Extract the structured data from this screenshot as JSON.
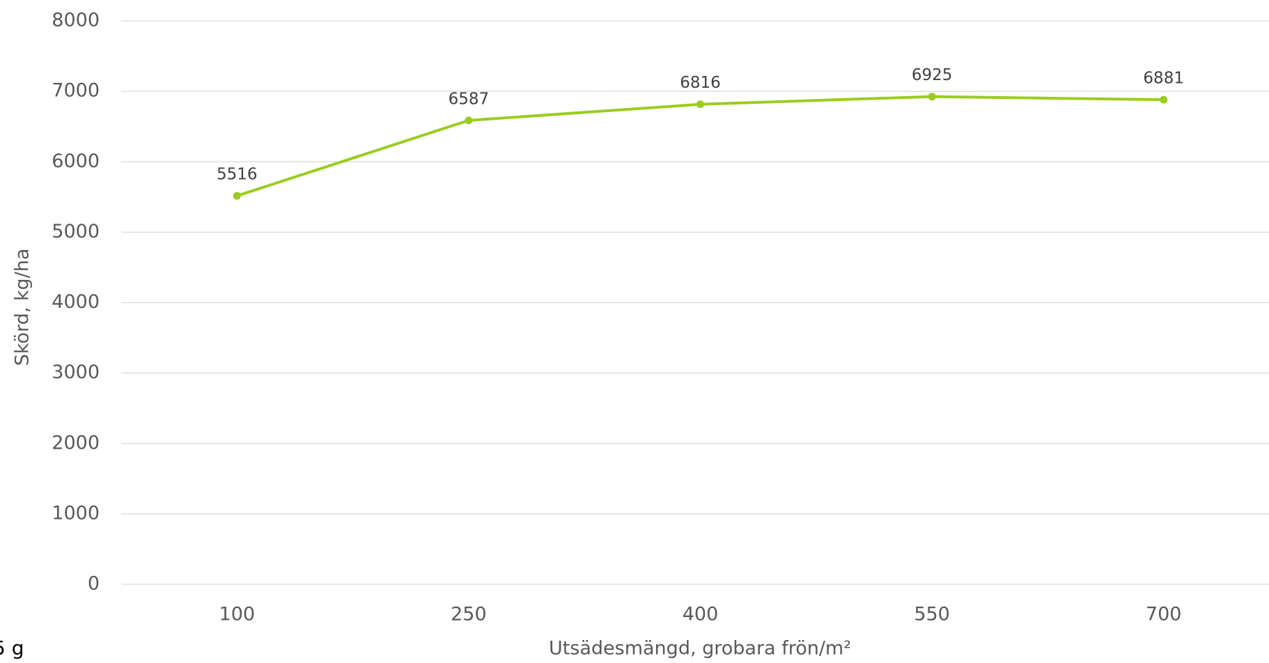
{
  "chart_data": {
    "type": "line",
    "categories": [
      "100",
      "250",
      "400",
      "550",
      "700"
    ],
    "series": [
      {
        "name": "Skörd",
        "color": "#9acd1f",
        "values": [
          5516,
          6587,
          6816,
          6925,
          6881
        ]
      }
    ],
    "ylim": [
      0,
      8000
    ],
    "yticks": [
      0,
      1000,
      2000,
      3000,
      4000,
      5000,
      6000,
      7000,
      8000
    ],
    "y_label": "Skörd, kg/ha",
    "x_label": "Utsädesmängd, grobara frön/m²",
    "annotation": "5 g",
    "grid": true,
    "data_labels": true
  }
}
